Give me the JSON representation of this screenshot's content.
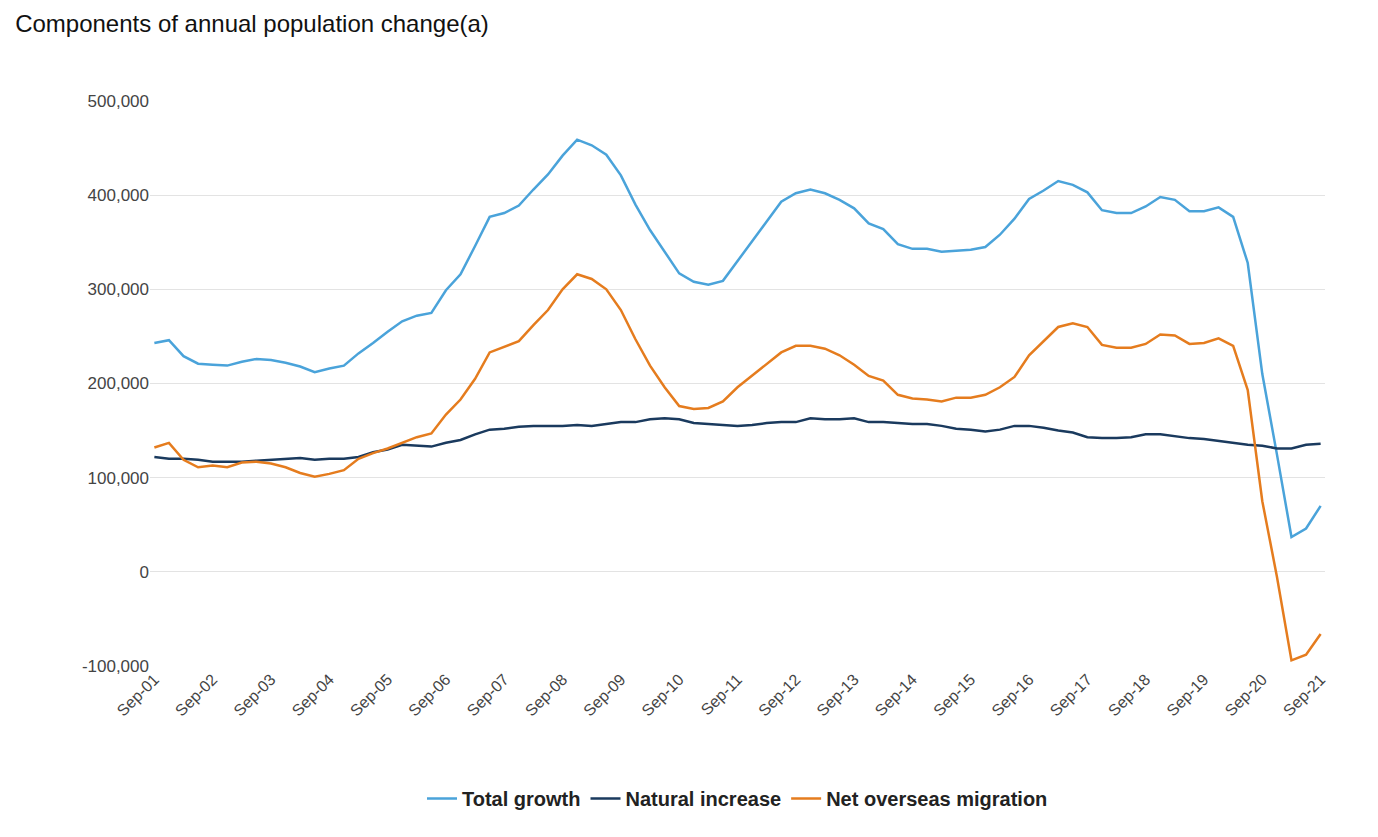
{
  "chart_data": {
    "type": "line",
    "title": "Components of annual population change(a)",
    "categories": [
      "Sep-01",
      null,
      null,
      null,
      "Sep-02",
      null,
      null,
      null,
      "Sep-03",
      null,
      null,
      null,
      "Sep-04",
      null,
      null,
      null,
      "Sep-05",
      null,
      null,
      null,
      "Sep-06",
      null,
      null,
      null,
      "Sep-07",
      null,
      null,
      null,
      "Sep-08",
      null,
      null,
      null,
      "Sep-09",
      null,
      null,
      null,
      "Sep-10",
      null,
      null,
      null,
      "Sep-11",
      null,
      null,
      null,
      "Sep-12",
      null,
      null,
      null,
      "Sep-13",
      null,
      null,
      null,
      "Sep-14",
      null,
      null,
      null,
      "Sep-15",
      null,
      null,
      null,
      "Sep-16",
      null,
      null,
      null,
      "Sep-17",
      null,
      null,
      null,
      "Sep-18",
      null,
      null,
      null,
      "Sep-19",
      null,
      null,
      null,
      "Sep-20",
      null,
      null,
      null,
      "Sep-21"
    ],
    "series": [
      {
        "name": "Total growth",
        "color": "#4aa3da",
        "values": [
          243000,
          246000,
          229000,
          221000,
          220000,
          219000,
          223000,
          226000,
          225000,
          222000,
          218000,
          212000,
          216000,
          219000,
          232000,
          243000,
          255000,
          266000,
          272000,
          275000,
          299000,
          316000,
          346000,
          377000,
          381000,
          389000,
          406000,
          422000,
          442000,
          459000,
          453000,
          443000,
          421000,
          390000,
          363000,
          340000,
          317000,
          308000,
          305000,
          309000,
          330000,
          351000,
          373000,
          393000,
          402000,
          406000,
          402000,
          395000,
          386000,
          370000,
          364000,
          348000,
          343000,
          343000,
          340000,
          341000,
          342000,
          345000,
          358000,
          375000,
          396000,
          405000,
          415000,
          411000,
          403000,
          384000,
          381000,
          381000,
          388000,
          398000,
          395000,
          383000,
          383000,
          387000,
          377000,
          328000,
          210000,
          125000,
          37000,
          46000,
          70000
        ]
      },
      {
        "name": "Natural increase",
        "color": "#1a3a5e",
        "values": [
          122000,
          120000,
          120000,
          119000,
          117000,
          117000,
          117000,
          118000,
          119000,
          120000,
          121000,
          119000,
          120000,
          120000,
          122000,
          127000,
          130000,
          135000,
          134000,
          133000,
          137000,
          140000,
          146000,
          151000,
          152000,
          154000,
          155000,
          155000,
          155000,
          156000,
          155000,
          157000,
          159000,
          159000,
          162000,
          163000,
          162000,
          158000,
          157000,
          156000,
          155000,
          156000,
          158000,
          159000,
          159000,
          163000,
          162000,
          162000,
          163000,
          159000,
          159000,
          158000,
          157000,
          157000,
          155000,
          152000,
          151000,
          149000,
          151000,
          155000,
          155000,
          153000,
          150000,
          148000,
          143000,
          142000,
          142000,
          143000,
          146000,
          146000,
          144000,
          142000,
          141000,
          139000,
          137000,
          135000,
          134000,
          131000,
          131000,
          135000,
          136000
        ]
      },
      {
        "name": "Net overseas migration",
        "color": "#e57c1e",
        "values": [
          132000,
          137000,
          119000,
          111000,
          113000,
          111000,
          116000,
          117000,
          115000,
          111000,
          105000,
          101000,
          104000,
          108000,
          120000,
          126000,
          131000,
          137000,
          143000,
          147000,
          167000,
          183000,
          205000,
          233000,
          239000,
          245000,
          262000,
          278000,
          300000,
          316000,
          311000,
          300000,
          278000,
          247000,
          219000,
          196000,
          176000,
          173000,
          174000,
          181000,
          196000,
          208000,
          221000,
          233000,
          240000,
          240000,
          237000,
          230000,
          220000,
          208000,
          203000,
          188000,
          184000,
          183000,
          181000,
          185000,
          185000,
          188000,
          196000,
          207000,
          230000,
          245000,
          260000,
          264000,
          260000,
          241000,
          238000,
          238000,
          242000,
          252000,
          251000,
          242000,
          243000,
          248000,
          240000,
          193000,
          75000,
          -5000,
          -94000,
          -88000,
          -66000
        ]
      }
    ],
    "ylim": [
      -100000,
      500000
    ],
    "yticks": [
      {
        "value": -100000,
        "label": "-100,000"
      },
      0,
      {
        "value": 100000,
        "label": "100,000"
      },
      {
        "value": 200000,
        "label": "200,000"
      },
      {
        "value": 300000,
        "label": "300,000"
      },
      {
        "value": 400000,
        "label": "400,000"
      },
      {
        "value": 500000,
        "label": "500,000"
      }
    ],
    "grid": true,
    "legend": "bottom"
  }
}
